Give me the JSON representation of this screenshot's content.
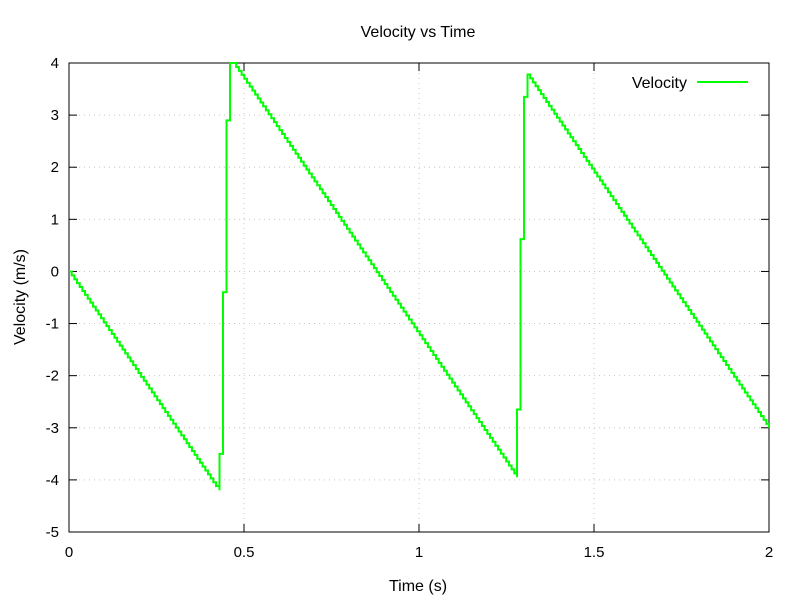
{
  "chart_data": {
    "type": "line",
    "title": "Velocity vs Time",
    "xlabel": "Time (s)",
    "ylabel": "Velocity (m/s)",
    "xlim": [
      0,
      2
    ],
    "ylim": [
      -5,
      4
    ],
    "xticks": [
      0,
      0.5,
      1,
      1.5,
      2
    ],
    "xtick_labels": [
      "0",
      "0.5",
      "1",
      "1.5",
      "2"
    ],
    "yticks": [
      -5,
      -4,
      -3,
      -2,
      -1,
      0,
      1,
      2,
      3,
      4
    ],
    "ytick_labels": [
      "-5",
      "-4",
      "-3",
      "-2",
      "-1",
      "0",
      "1",
      "2",
      "3",
      "4"
    ],
    "grid": true,
    "legend_position": "top-right",
    "series": [
      {
        "name": "Velocity",
        "color": "#00ff00",
        "points": [
          [
            0,
            0
          ],
          [
            0.42,
            -4.12
          ],
          [
            0.43,
            -4.2
          ],
          [
            0.43,
            -3.5
          ],
          [
            0.44,
            -3.5
          ],
          [
            0.44,
            -0.4
          ],
          [
            0.45,
            -0.4
          ],
          [
            0.45,
            2.9
          ],
          [
            0.46,
            2.9
          ],
          [
            0.46,
            4.0
          ],
          [
            0.47,
            4.0
          ],
          [
            1.28,
            -3.95
          ],
          [
            1.28,
            -2.65
          ],
          [
            1.29,
            -2.65
          ],
          [
            1.29,
            0.62
          ],
          [
            1.3,
            0.62
          ],
          [
            1.3,
            3.35
          ],
          [
            1.31,
            3.35
          ],
          [
            1.31,
            3.78
          ],
          [
            2.0,
            -3.0
          ]
        ]
      }
    ]
  }
}
